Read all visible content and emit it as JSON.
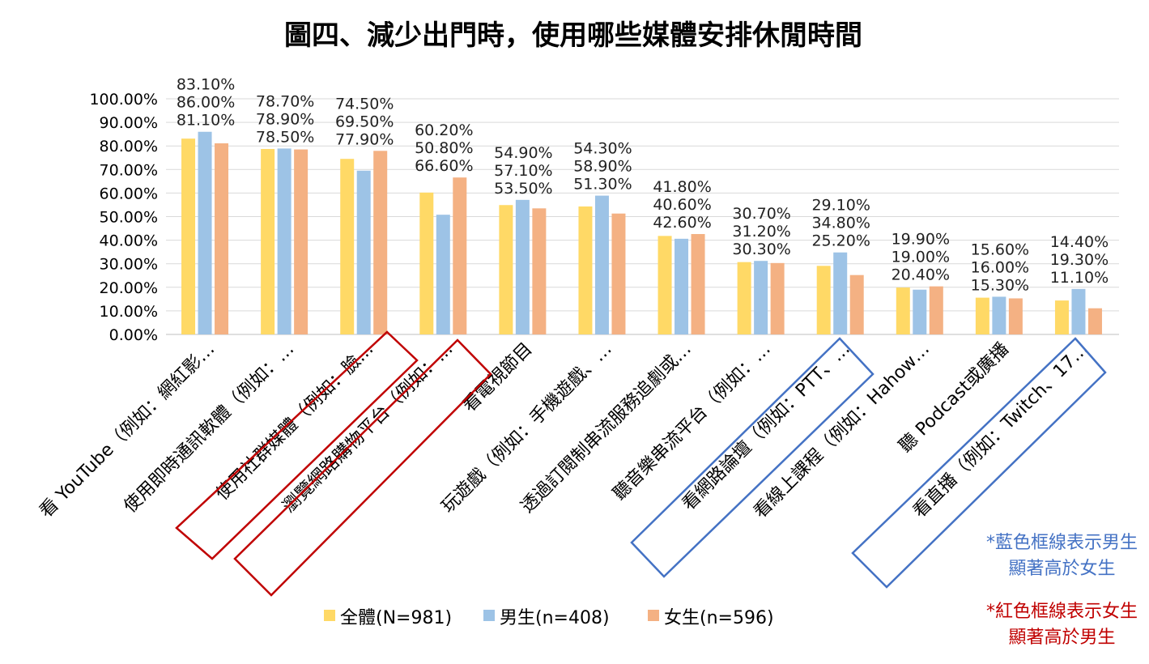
{
  "chart_data": {
    "type": "bar",
    "title": "圖四、減少出門時，使用哪些媒體安排休閒時間",
    "xlabel": "",
    "ylabel": "",
    "ylim": [
      0,
      100
    ],
    "ytick_labels": [
      "0.00%",
      "10.00%",
      "20.00%",
      "30.00%",
      "40.00%",
      "50.00%",
      "60.00%",
      "70.00%",
      "80.00%",
      "90.00%",
      "100.00%"
    ],
    "grid": true,
    "legend_position": "bottom",
    "categories": [
      "看 YouTube（例如：網紅影…",
      "使用即時通訊軟體（例如：…",
      "使用社群媒體（例如：臉…",
      "瀏覽網路購物平台（例如：…",
      "看電視節目",
      "玩遊戲（例如：手機遊戲、…",
      "透過訂閱制串流服務追劇或…",
      "聽音樂串流平台（例如：…",
      "看網路論壇（例如：PTT、…",
      "看線上課程（例如：Hahow…",
      "聽 Podcast或廣播",
      "看直播（例如：Twitch、17…"
    ],
    "series": [
      {
        "name": "全體(N=981)",
        "color": "#FFD966",
        "values": [
          83.1,
          78.7,
          74.5,
          60.2,
          54.9,
          54.3,
          41.8,
          30.7,
          29.1,
          19.9,
          15.6,
          14.4
        ]
      },
      {
        "name": "男生(n=408)",
        "color": "#9DC3E6",
        "values": [
          86.0,
          78.9,
          69.5,
          50.8,
          57.1,
          58.9,
          40.6,
          31.2,
          34.8,
          19.0,
          16.0,
          19.3
        ]
      },
      {
        "name": "女生(n=596)",
        "color": "#F4B183",
        "values": [
          81.1,
          78.5,
          77.9,
          66.6,
          53.5,
          51.3,
          42.6,
          30.3,
          25.2,
          20.4,
          15.3,
          11.1
        ]
      }
    ],
    "highlight_male": [
      8,
      11
    ],
    "highlight_female": [
      2,
      3
    ],
    "notes": {
      "blue_line1": "*藍色框線表示男生",
      "blue_line2": "顯著高於女生",
      "red_line1": "*紅色框線表示女生",
      "red_line2": "顯著高於男生",
      "blue_color": "#4472C4",
      "red_color": "#C00000"
    }
  }
}
